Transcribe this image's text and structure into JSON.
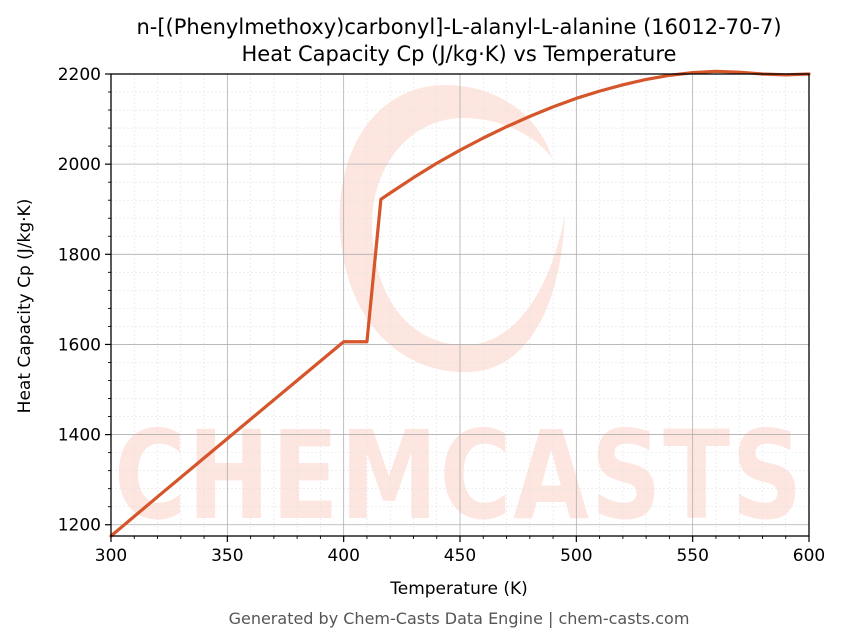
{
  "chart_data": {
    "type": "line",
    "title": "n-[(Phenylmethoxy)carbonyl]-L-alanyl-L-alanine (16012-70-7)",
    "subtitle": "Heat Capacity Cp (J/kg·K) vs Temperature",
    "xlabel": "Temperature (K)",
    "ylabel": "Heat Capacity Cp (J/kg·K)",
    "xlim": [
      300,
      600
    ],
    "ylim": [
      1175,
      2200
    ],
    "xticks": [
      300,
      350,
      400,
      450,
      500,
      550,
      600
    ],
    "yticks": [
      1200,
      1400,
      1600,
      1800,
      2000,
      2200
    ],
    "grid": true,
    "series": [
      {
        "color": "#d4562a",
        "x": [
          300,
          320,
          340,
          360,
          380,
          400,
          410,
          416,
          420,
          430,
          440,
          450,
          460,
          470,
          480,
          490,
          500,
          510,
          520,
          530,
          540,
          550,
          560,
          570,
          580,
          590,
          600
        ],
        "y": [
          1175,
          1262,
          1348,
          1434,
          1520,
          1606,
          1606,
          1922,
          1936,
          1970,
          2002,
          2031,
          2058,
          2083,
          2106,
          2127,
          2146,
          2162,
          2176,
          2188,
          2197,
          2203,
          2206,
          2204,
          2200,
          2198,
          2200
        ]
      }
    ]
  },
  "watermark": {
    "text": "CHEMCASTS"
  },
  "footer": "Generated by Chem-Casts Data Engine | chem-casts.com"
}
